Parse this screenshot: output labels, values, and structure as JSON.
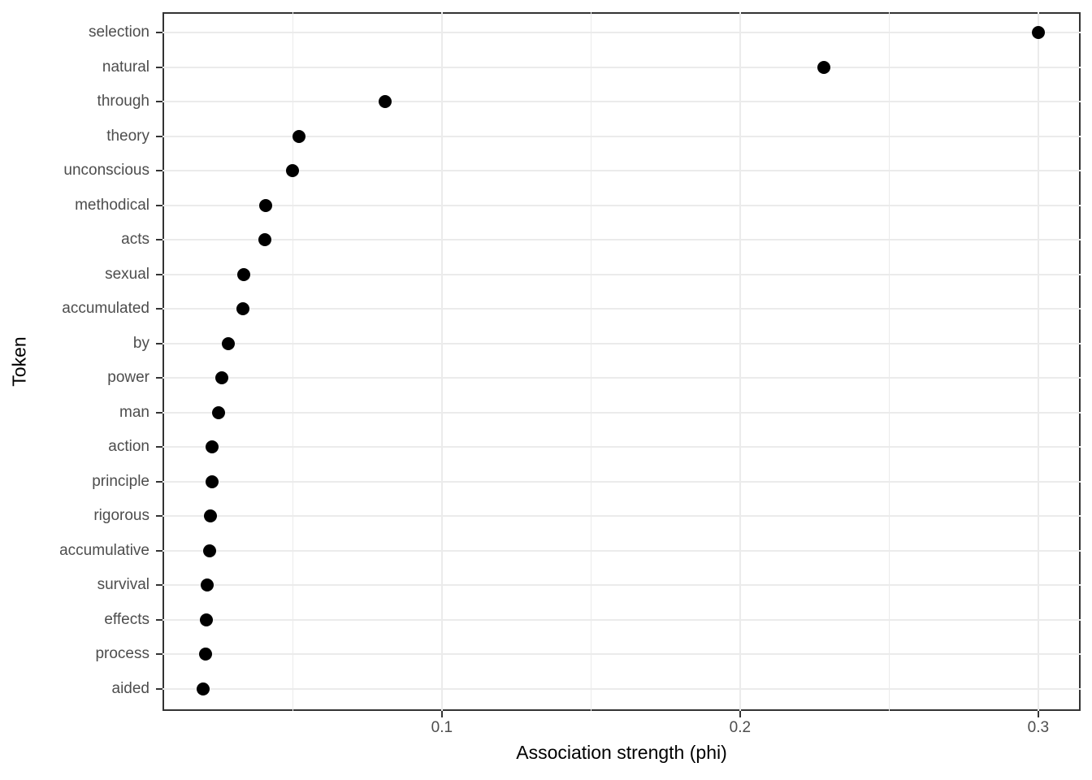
{
  "chart_data": {
    "type": "scatter",
    "subtype": "horizontal-dot-plot",
    "title": "",
    "xlabel": "Association strength (phi)",
    "ylabel": "Token",
    "categories": [
      "selection",
      "natural",
      "through",
      "theory",
      "unconscious",
      "methodical",
      "acts",
      "sexual",
      "accumulated",
      "by",
      "power",
      "man",
      "action",
      "principle",
      "rigorous",
      "accumulative",
      "survival",
      "effects",
      "process",
      "aided"
    ],
    "values": [
      0.3,
      0.228,
      0.081,
      0.052,
      0.05,
      0.041,
      0.0405,
      0.0335,
      0.0332,
      0.0284,
      0.0263,
      0.0252,
      0.023,
      0.0228,
      0.0223,
      0.0221,
      0.0213,
      0.021,
      0.0208,
      0.0199
    ],
    "xlim": [
      0.0063,
      0.3142
    ],
    "x_major_ticks": [
      0.1,
      0.2,
      0.3
    ],
    "x_tick_labels": [
      "0.1",
      "0.2",
      "0.3"
    ],
    "x_minor_ticks": [
      0.05,
      0.15,
      0.25
    ],
    "grid": "x-major, x-minor, y-major; white panel with border",
    "legend": "none",
    "colors": {
      "point": "#000000",
      "grid": "#ebebeb",
      "panel_border": "#333333",
      "tick": "#333333",
      "tick_label": "#4d4d4d",
      "axis_title": "#000000",
      "background": "#ffffff"
    }
  }
}
